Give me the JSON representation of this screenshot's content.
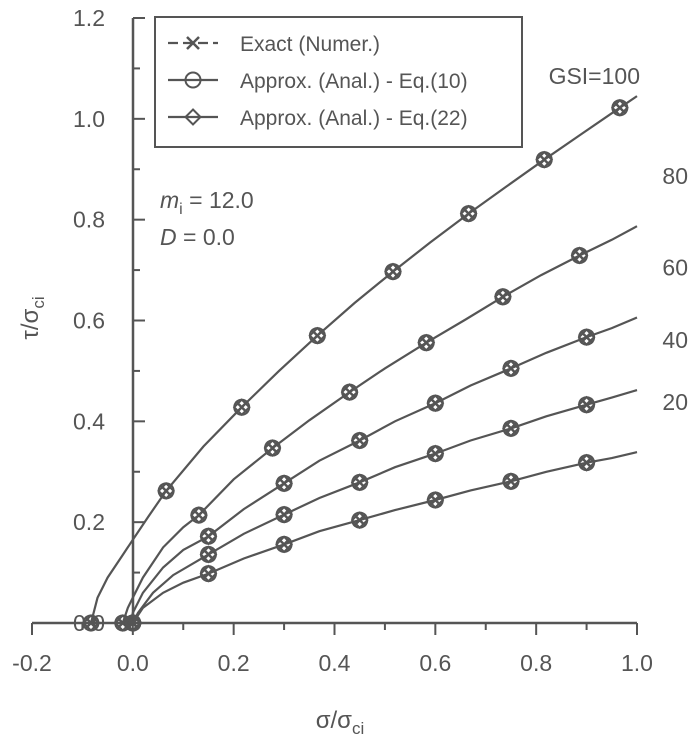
{
  "chart_data": {
    "type": "line",
    "xlabel": "σ/σ",
    "xlabel_sub": "ci",
    "ylabel": "τ/σ",
    "ylabel_sub": "ci",
    "xlim": [
      -0.2,
      1.0
    ],
    "ylim": [
      0.0,
      1.2
    ],
    "xticks": [
      "-0.2",
      "0.0",
      "0.2",
      "0.4",
      "0.6",
      "0.8",
      "1.0"
    ],
    "yticks": [
      "0.0",
      "0.2",
      "0.4",
      "0.6",
      "0.8",
      "1.0",
      "1.2"
    ],
    "legend": [
      {
        "label": "Exact (Numer.)",
        "marker": "x"
      },
      {
        "label": "Approx. (Anal.) - Eq.(10)",
        "marker": "circle"
      },
      {
        "label": "Approx. (Anal.) - Eq.(22)",
        "marker": "diamond"
      }
    ],
    "annotation": {
      "mi_var": "m",
      "mi_sub": "i",
      "mi_value": " = 12.0",
      "d_var": "D",
      "d_value": " = 0.0"
    },
    "series": [
      {
        "name": "GSI=100",
        "label": "GSI=100",
        "curve": [
          [
            -0.083,
            0.0
          ],
          [
            -0.07,
            0.05
          ],
          [
            -0.05,
            0.09
          ],
          [
            -0.02,
            0.135
          ],
          [
            0.0,
            0.165
          ],
          [
            0.03,
            0.21
          ],
          [
            0.066,
            0.262
          ],
          [
            0.14,
            0.35
          ],
          [
            0.216,
            0.428
          ],
          [
            0.29,
            0.5
          ],
          [
            0.366,
            0.57
          ],
          [
            0.44,
            0.635
          ],
          [
            0.516,
            0.697
          ],
          [
            0.59,
            0.755
          ],
          [
            0.666,
            0.812
          ],
          [
            0.74,
            0.865
          ],
          [
            0.816,
            0.919
          ],
          [
            0.89,
            0.97
          ],
          [
            0.966,
            1.022
          ],
          [
            1.0,
            1.045
          ]
        ],
        "markers": [
          [
            -0.083,
            0.0
          ],
          [
            0.066,
            0.262
          ],
          [
            0.216,
            0.428
          ],
          [
            0.366,
            0.57
          ],
          [
            0.516,
            0.697
          ],
          [
            0.666,
            0.812
          ],
          [
            0.816,
            0.919
          ],
          [
            0.966,
            1.022
          ]
        ]
      },
      {
        "name": "GSI=80",
        "label": "80",
        "curve": [
          [
            -0.02,
            0.0
          ],
          [
            -0.01,
            0.03
          ],
          [
            0.0,
            0.05
          ],
          [
            0.02,
            0.09
          ],
          [
            0.06,
            0.15
          ],
          [
            0.1,
            0.19
          ],
          [
            0.131,
            0.214
          ],
          [
            0.2,
            0.285
          ],
          [
            0.277,
            0.347
          ],
          [
            0.35,
            0.402
          ],
          [
            0.43,
            0.458
          ],
          [
            0.5,
            0.505
          ],
          [
            0.582,
            0.556
          ],
          [
            0.66,
            0.602
          ],
          [
            0.734,
            0.647
          ],
          [
            0.81,
            0.69
          ],
          [
            0.886,
            0.729
          ],
          [
            0.95,
            0.76
          ],
          [
            1.0,
            0.787
          ]
        ],
        "markers": [
          [
            -0.02,
            0.0
          ],
          [
            0.131,
            0.214
          ],
          [
            0.277,
            0.347
          ],
          [
            0.43,
            0.458
          ],
          [
            0.582,
            0.556
          ],
          [
            0.734,
            0.647
          ],
          [
            0.886,
            0.729
          ]
        ]
      },
      {
        "name": "GSI=60",
        "label": "60",
        "curve": [
          [
            -0.005,
            0.0
          ],
          [
            0.0,
            0.02
          ],
          [
            0.02,
            0.06
          ],
          [
            0.06,
            0.11
          ],
          [
            0.1,
            0.145
          ],
          [
            0.15,
            0.172
          ],
          [
            0.22,
            0.226
          ],
          [
            0.3,
            0.277
          ],
          [
            0.37,
            0.322
          ],
          [
            0.45,
            0.362
          ],
          [
            0.52,
            0.4
          ],
          [
            0.6,
            0.436
          ],
          [
            0.67,
            0.471
          ],
          [
            0.75,
            0.505
          ],
          [
            0.82,
            0.536
          ],
          [
            0.9,
            0.567
          ],
          [
            0.95,
            0.585
          ],
          [
            1.0,
            0.606
          ]
        ],
        "markers": [
          [
            0.0,
            0.0
          ],
          [
            0.15,
            0.172
          ],
          [
            0.3,
            0.277
          ],
          [
            0.45,
            0.362
          ],
          [
            0.6,
            0.436
          ],
          [
            0.75,
            0.505
          ],
          [
            0.9,
            0.567
          ]
        ]
      },
      {
        "name": "GSI=40",
        "label": "40",
        "curve": [
          [
            0.0,
            0.0
          ],
          [
            0.01,
            0.02
          ],
          [
            0.04,
            0.06
          ],
          [
            0.08,
            0.095
          ],
          [
            0.15,
            0.136
          ],
          [
            0.22,
            0.177
          ],
          [
            0.3,
            0.215
          ],
          [
            0.37,
            0.248
          ],
          [
            0.45,
            0.279
          ],
          [
            0.52,
            0.309
          ],
          [
            0.6,
            0.336
          ],
          [
            0.67,
            0.362
          ],
          [
            0.75,
            0.386
          ],
          [
            0.82,
            0.41
          ],
          [
            0.9,
            0.433
          ],
          [
            0.95,
            0.447
          ],
          [
            1.0,
            0.462
          ]
        ],
        "markers": [
          [
            0.0,
            0.0
          ],
          [
            0.15,
            0.136
          ],
          [
            0.3,
            0.215
          ],
          [
            0.45,
            0.279
          ],
          [
            0.6,
            0.336
          ],
          [
            0.75,
            0.386
          ],
          [
            0.9,
            0.433
          ]
        ]
      },
      {
        "name": "GSI=20",
        "label": "20",
        "curve": [
          [
            0.0,
            0.0
          ],
          [
            0.02,
            0.03
          ],
          [
            0.06,
            0.06
          ],
          [
            0.1,
            0.08
          ],
          [
            0.15,
            0.098
          ],
          [
            0.22,
            0.128
          ],
          [
            0.3,
            0.156
          ],
          [
            0.37,
            0.182
          ],
          [
            0.45,
            0.204
          ],
          [
            0.52,
            0.224
          ],
          [
            0.6,
            0.244
          ],
          [
            0.67,
            0.263
          ],
          [
            0.75,
            0.281
          ],
          [
            0.82,
            0.3
          ],
          [
            0.9,
            0.318
          ],
          [
            0.95,
            0.327
          ],
          [
            1.0,
            0.339
          ]
        ],
        "markers": [
          [
            0.0,
            0.0
          ],
          [
            0.15,
            0.098
          ],
          [
            0.3,
            0.156
          ],
          [
            0.45,
            0.204
          ],
          [
            0.6,
            0.244
          ],
          [
            0.75,
            0.281
          ],
          [
            0.9,
            0.318
          ]
        ]
      }
    ]
  }
}
